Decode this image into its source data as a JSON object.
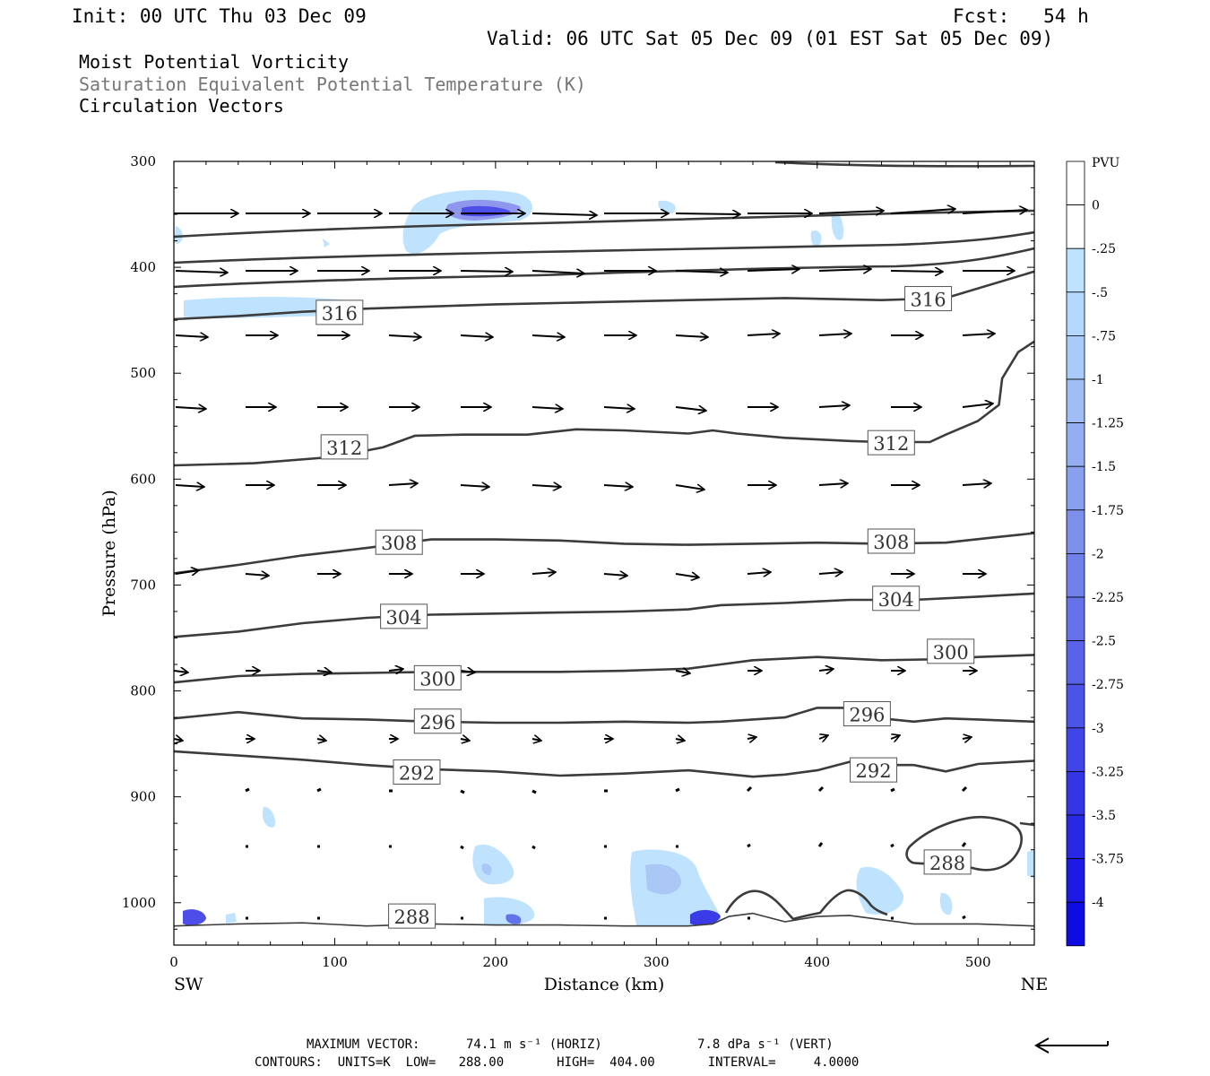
{
  "header": {
    "init": "Init: 00 UTC Thu 03 Dec 09",
    "fcst": "Fcst:   54 h",
    "valid": "Valid: 06 UTC Sat 05 Dec 09 (01 EST Sat 05 Dec 09)",
    "field1": "Moist Potential Vorticity",
    "field2": "Saturation Equivalent Potential Temperature (K)",
    "field3": "Circulation Vectors"
  },
  "footer": {
    "max_vector_label": "MAXIMUM VECTOR:",
    "max_horiz": "74.1 m s⁻¹ (HORIZ)",
    "max_vert": "7.8 dPa s⁻¹ (VERT)",
    "contours_line": "CONTOURS:  UNITS=K  LOW=   288.00       HIGH=  404.00       INTERVAL=     4.0000"
  },
  "colors": {
    "contour": "#3c3c3c",
    "pv_light": "#bfe3ff",
    "pv_mid": "#9aa8f2",
    "pv_dark": "#2a2ae6"
  },
  "chart_data": {
    "type": "cross-section",
    "xlabel": "Distance (km)",
    "ylabel": "Pressure (hPa)",
    "x_ticks": [
      0,
      100,
      200,
      300,
      400,
      500
    ],
    "y_ticks": [
      300,
      400,
      500,
      600,
      700,
      800,
      900,
      1000
    ],
    "xlim": [
      0,
      535
    ],
    "ylim": [
      300,
      1040
    ],
    "x_end_labels": {
      "left": "SW",
      "right": "NE"
    },
    "colorbar": {
      "unit": "PVU",
      "levels": [
        "0",
        "-.25",
        "-.5",
        "-.75",
        "-1",
        "-1.25",
        "-1.5",
        "-1.75",
        "-2",
        "-2.25",
        "-2.5",
        "-2.75",
        "-3",
        "-3.25",
        "-3.5",
        "-3.75",
        "-4"
      ],
      "colors": [
        "#ffffff",
        "#ffffff",
        "#bfe3ff",
        "#b5d9fc",
        "#aacbf8",
        "#9fbdf4",
        "#94aef1",
        "#89a0ee",
        "#7d90ec",
        "#7181eb",
        "#6572ea",
        "#5963e9",
        "#4c54e8",
        "#4045e7",
        "#3436e6",
        "#2828e5",
        "#1c1ae4",
        "#0f0ce3"
      ]
    },
    "contours": [
      {
        "value": 316,
        "label": "316",
        "labels_at": [
          [
            103,
            443
          ],
          [
            469,
            430
          ]
        ],
        "points": [
          [
            0,
            449
          ],
          [
            40,
            446
          ],
          [
            80,
            442
          ],
          [
            120,
            439
          ],
          [
            160,
            437
          ],
          [
            200,
            435
          ],
          [
            260,
            433
          ],
          [
            320,
            431
          ],
          [
            380,
            429
          ],
          [
            440,
            431
          ],
          [
            480,
            429
          ],
          [
            535,
            404
          ]
        ]
      },
      {
        "value": 312,
        "label": "312",
        "labels_at": [
          [
            106,
            570
          ],
          [
            446,
            566
          ]
        ],
        "points": [
          [
            0,
            587
          ],
          [
            50,
            585
          ],
          [
            100,
            579
          ],
          [
            130,
            570
          ],
          [
            150,
            559
          ],
          [
            180,
            558
          ],
          [
            220,
            558
          ],
          [
            250,
            553
          ],
          [
            280,
            554
          ],
          [
            320,
            557
          ],
          [
            335,
            554
          ],
          [
            350,
            557
          ],
          [
            380,
            561
          ],
          [
            420,
            564
          ],
          [
            440,
            565
          ],
          [
            470,
            565
          ],
          [
            480,
            558
          ],
          [
            500,
            545
          ],
          [
            513,
            530
          ],
          [
            515,
            505
          ],
          [
            525,
            480
          ],
          [
            535,
            470
          ]
        ]
      },
      {
        "value": 308,
        "label": "308",
        "labels_at": [
          [
            140,
            660
          ],
          [
            446,
            659
          ]
        ],
        "points": [
          [
            0,
            689
          ],
          [
            40,
            681
          ],
          [
            80,
            672
          ],
          [
            120,
            665
          ],
          [
            160,
            657
          ],
          [
            200,
            657
          ],
          [
            240,
            658
          ],
          [
            280,
            661
          ],
          [
            320,
            662
          ],
          [
            360,
            661
          ],
          [
            400,
            660
          ],
          [
            440,
            661
          ],
          [
            480,
            660
          ],
          [
            510,
            655
          ],
          [
            535,
            651
          ]
        ]
      },
      {
        "value": 304,
        "label": "304",
        "labels_at": [
          [
            143,
            730
          ],
          [
            449,
            713
          ]
        ],
        "points": [
          [
            0,
            749
          ],
          [
            40,
            744
          ],
          [
            80,
            736
          ],
          [
            120,
            731
          ],
          [
            160,
            728
          ],
          [
            200,
            727
          ],
          [
            240,
            726
          ],
          [
            280,
            725
          ],
          [
            320,
            723
          ],
          [
            340,
            719
          ],
          [
            380,
            717
          ],
          [
            420,
            714
          ],
          [
            460,
            714
          ],
          [
            500,
            711
          ],
          [
            535,
            708
          ]
        ]
      },
      {
        "value": 300,
        "label": "300",
        "labels_at": [
          [
            164,
            788
          ],
          [
            483,
            763
          ]
        ],
        "points": [
          [
            0,
            792
          ],
          [
            40,
            786
          ],
          [
            80,
            784
          ],
          [
            120,
            783
          ],
          [
            160,
            782
          ],
          [
            200,
            782
          ],
          [
            240,
            782
          ],
          [
            280,
            781
          ],
          [
            320,
            779
          ],
          [
            340,
            775
          ],
          [
            360,
            771
          ],
          [
            400,
            768
          ],
          [
            440,
            771
          ],
          [
            480,
            770
          ],
          [
            500,
            768
          ],
          [
            535,
            766
          ]
        ]
      },
      {
        "value": 296,
        "label": "296",
        "labels_at": [
          [
            164,
            829
          ],
          [
            431,
            822
          ]
        ],
        "points": [
          [
            0,
            826
          ],
          [
            40,
            820
          ],
          [
            80,
            826
          ],
          [
            120,
            827
          ],
          [
            160,
            829
          ],
          [
            200,
            830
          ],
          [
            240,
            830
          ],
          [
            280,
            829
          ],
          [
            320,
            830
          ],
          [
            340,
            829
          ],
          [
            380,
            825
          ],
          [
            400,
            816
          ],
          [
            420,
            816
          ],
          [
            440,
            826
          ],
          [
            460,
            829
          ],
          [
            480,
            826
          ],
          [
            500,
            827
          ],
          [
            535,
            829
          ]
        ]
      },
      {
        "value": 292,
        "label": "292",
        "labels_at": [
          [
            151,
            877
          ],
          [
            435,
            875
          ]
        ],
        "points": [
          [
            0,
            857
          ],
          [
            40,
            861
          ],
          [
            80,
            865
          ],
          [
            120,
            870
          ],
          [
            160,
            874
          ],
          [
            200,
            876
          ],
          [
            240,
            880
          ],
          [
            280,
            878
          ],
          [
            320,
            875
          ],
          [
            360,
            881
          ],
          [
            380,
            879
          ],
          [
            400,
            875
          ],
          [
            420,
            867
          ],
          [
            440,
            870
          ],
          [
            460,
            870
          ],
          [
            480,
            876
          ],
          [
            500,
            869
          ],
          [
            535,
            866
          ]
        ]
      },
      {
        "value": 288,
        "label": "288",
        "labels_at": [
          [
            148,
            1013
          ],
          [
            481,
            962
          ]
        ],
        "points": [
          [
            0,
            1022
          ],
          [
            40,
            1020
          ],
          [
            80,
            1019
          ],
          [
            120,
            1022
          ],
          [
            160,
            1020
          ],
          [
            200,
            1021
          ],
          [
            240,
            1021
          ],
          [
            280,
            1022
          ],
          [
            320,
            1022
          ],
          [
            335,
            1020
          ],
          [
            345,
            1013
          ],
          [
            360,
            1010
          ],
          [
            380,
            1018
          ],
          [
            400,
            1013
          ],
          [
            420,
            1012
          ],
          [
            440,
            1016
          ],
          [
            460,
            1020
          ],
          [
            480,
            1020
          ],
          [
            500,
            1020
          ],
          [
            535,
            1022
          ]
        ]
      }
    ]
  }
}
